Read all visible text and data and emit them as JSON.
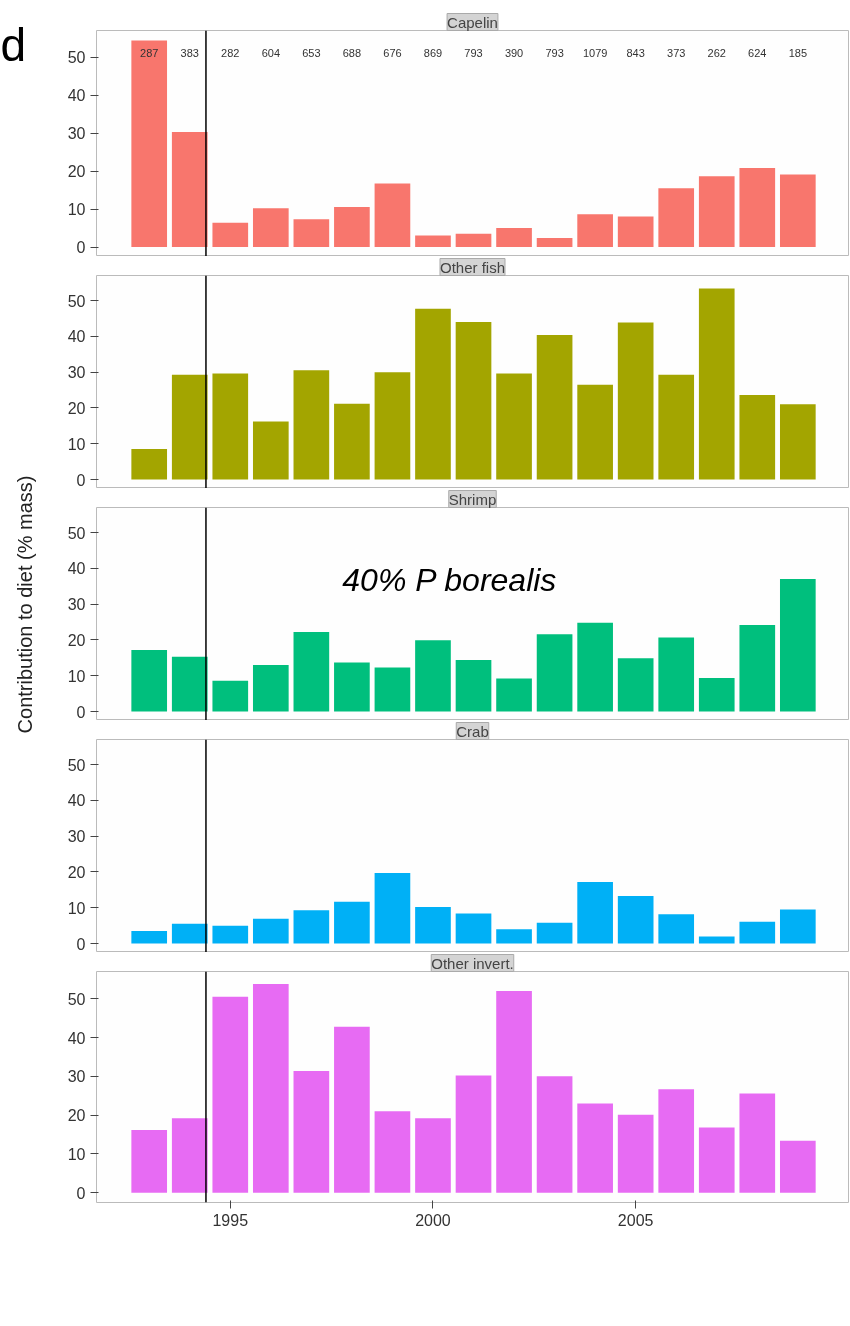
{
  "chart_data": [
    {
      "type": "bar",
      "title": "Capelin",
      "annotations": [
        "d",
        "287",
        "383",
        "282",
        "604",
        "653",
        "688",
        "676",
        "869",
        "793",
        "390",
        "793",
        "1079",
        "843",
        "373",
        "262",
        "624",
        "185"
      ],
      "x": [
        1993,
        1994,
        1995,
        1996,
        1997,
        1998,
        1999,
        2000,
        2001,
        2002,
        2003,
        2004,
        2005,
        2006,
        2007,
        2008,
        2009
      ],
      "values": [
        54.4,
        30.3,
        6.4,
        10.2,
        7.3,
        10.5,
        16.7,
        3.0,
        3.5,
        5.0,
        2.4,
        8.6,
        8.0,
        15.5,
        18.6,
        20.8,
        19.1
      ],
      "color": "#f8766d",
      "xlim": [
        1991.7,
        2010.25
      ],
      "xticks": [
        1995,
        2000,
        2005
      ],
      "ylim": [
        -2.5,
        57
      ],
      "yticks": [
        0,
        10,
        20,
        30,
        40,
        50
      ],
      "tick_labels": "y",
      "ref_lines": [
        {
          "axis": "x",
          "value": 1994.4,
          "color": "#000000"
        }
      ]
    },
    {
      "type": "bar",
      "title": "Other fish",
      "x": [
        1993,
        1994,
        1995,
        1996,
        1997,
        1998,
        1999,
        2000,
        2001,
        2002,
        2003,
        2004,
        2005,
        2006,
        2007,
        2008,
        2009
      ],
      "values": [
        8.5,
        29.3,
        29.6,
        16.2,
        30.5,
        21.2,
        30,
        47.7,
        44,
        29.6,
        40.4,
        26.5,
        43.9,
        29.3,
        53.4,
        23.6,
        21
      ],
      "color": "#a3a500",
      "xlim": [
        1991.7,
        2010.25
      ],
      "xticks": [
        1995,
        2000,
        2005
      ],
      "ylim": [
        -2.5,
        57
      ],
      "yticks": [
        0,
        10,
        20,
        30,
        40,
        50
      ],
      "tick_labels": "y",
      "ref_lines": [
        {
          "axis": "x",
          "value": 1994.4,
          "color": "#000000"
        }
      ]
    },
    {
      "type": "bar",
      "title": "Shrimp",
      "ylabel": "Contribution to diet (% mass)",
      "annotations": [
        "40% P borealis"
      ],
      "x": [
        1993,
        1994,
        1995,
        1996,
        1997,
        1998,
        1999,
        2000,
        2001,
        2002,
        2003,
        2004,
        2005,
        2006,
        2007,
        2008,
        2009
      ],
      "values": [
        17.2,
        15.3,
        8.6,
        13,
        22.2,
        13.7,
        12.3,
        19.9,
        14.4,
        9.2,
        21.6,
        24.8,
        14.9,
        20.7,
        9.4,
        24.2,
        37
      ],
      "color": "#00bf7d",
      "xlim": [
        1991.7,
        2010.25
      ],
      "xticks": [
        1995,
        2000,
        2005
      ],
      "ylim": [
        -2.5,
        57
      ],
      "yticks": [
        0,
        10,
        20,
        30,
        40,
        50
      ],
      "tick_labels": "y",
      "ref_lines": [
        {
          "axis": "x",
          "value": 1994.4,
          "color": "#000000"
        }
      ]
    },
    {
      "type": "bar",
      "title": "Crab",
      "x": [
        1993,
        1994,
        1995,
        1996,
        1997,
        1998,
        1999,
        2000,
        2001,
        2002,
        2003,
        2004,
        2005,
        2006,
        2007,
        2008,
        2009
      ],
      "values": [
        3.5,
        5.5,
        5,
        6.9,
        9.3,
        11.7,
        19.7,
        10.2,
        8.4,
        4,
        5.8,
        17.2,
        13.3,
        8.2,
        2,
        6.1,
        9.5
      ],
      "color": "#00b0f6",
      "xlim": [
        1991.7,
        2010.25
      ],
      "xticks": [
        1995,
        2000,
        2005
      ],
      "ylim": [
        -2.5,
        57
      ],
      "yticks": [
        0,
        10,
        20,
        30,
        40,
        50
      ],
      "tick_labels": "y",
      "ref_lines": [
        {
          "axis": "x",
          "value": 1994.4,
          "color": "#000000"
        }
      ]
    },
    {
      "type": "bar",
      "title": "Other invert.",
      "x": [
        1993,
        1994,
        1995,
        1996,
        1997,
        1998,
        1999,
        2000,
        2001,
        2002,
        2003,
        2004,
        2005,
        2006,
        2007,
        2008,
        2009
      ],
      "values": [
        16.2,
        19.2,
        50.5,
        53.8,
        31.4,
        42.8,
        21,
        19.2,
        30.2,
        52,
        30,
        23,
        20.1,
        26.7,
        16.8,
        25.6,
        13.4
      ],
      "color": "#e76bf3",
      "xlim": [
        1991.7,
        2010.25
      ],
      "xticks": [
        1995,
        2000,
        2005
      ],
      "ylim": [
        -2.5,
        57
      ],
      "yticks": [
        0,
        10,
        20,
        30,
        40,
        50
      ],
      "ref_lines": [
        {
          "axis": "x",
          "value": 1994.4,
          "color": "#000000"
        }
      ]
    }
  ]
}
